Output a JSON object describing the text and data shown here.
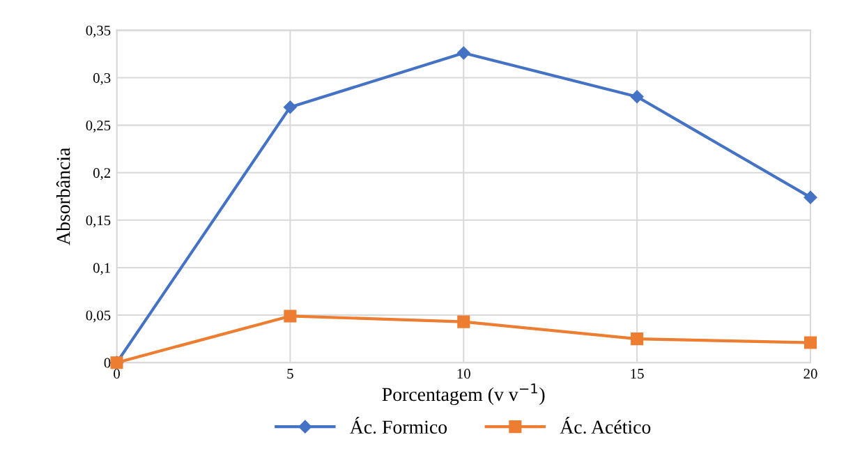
{
  "chart_data": {
    "type": "line",
    "xlabel": "Porcentagem (v v$^{−1}$)",
    "ylabel": "Absorbância",
    "x": [
      0,
      5,
      10,
      15,
      20
    ],
    "series": [
      {
        "name": "Ác. Formico",
        "color": "#4472c4",
        "marker": "diamond",
        "values": [
          0,
          0.269,
          0.326,
          0.28,
          0.174
        ]
      },
      {
        "name": "Ác. Acético",
        "color": "#ed7d31",
        "marker": "square",
        "values": [
          0,
          0.049,
          0.043,
          0.025,
          0.021
        ]
      }
    ],
    "xlim": [
      0,
      20
    ],
    "xticks": [
      0,
      5,
      10,
      15,
      20
    ],
    "ylim": [
      0,
      0.35
    ],
    "yticks": [
      {
        "value": 0,
        "label": "0"
      },
      {
        "value": 0.05,
        "label": "0,05"
      },
      {
        "value": 0.1,
        "label": "0,1"
      },
      {
        "value": 0.15,
        "label": "0,15"
      },
      {
        "value": 0.2,
        "label": "0,2"
      },
      {
        "value": 0.25,
        "label": "0,25"
      },
      {
        "value": 0.3,
        "label": "0,3"
      },
      {
        "value": 0.35,
        "label": "0,35"
      }
    ],
    "grid": true,
    "legend": "bottom",
    "line_style": "solid"
  }
}
